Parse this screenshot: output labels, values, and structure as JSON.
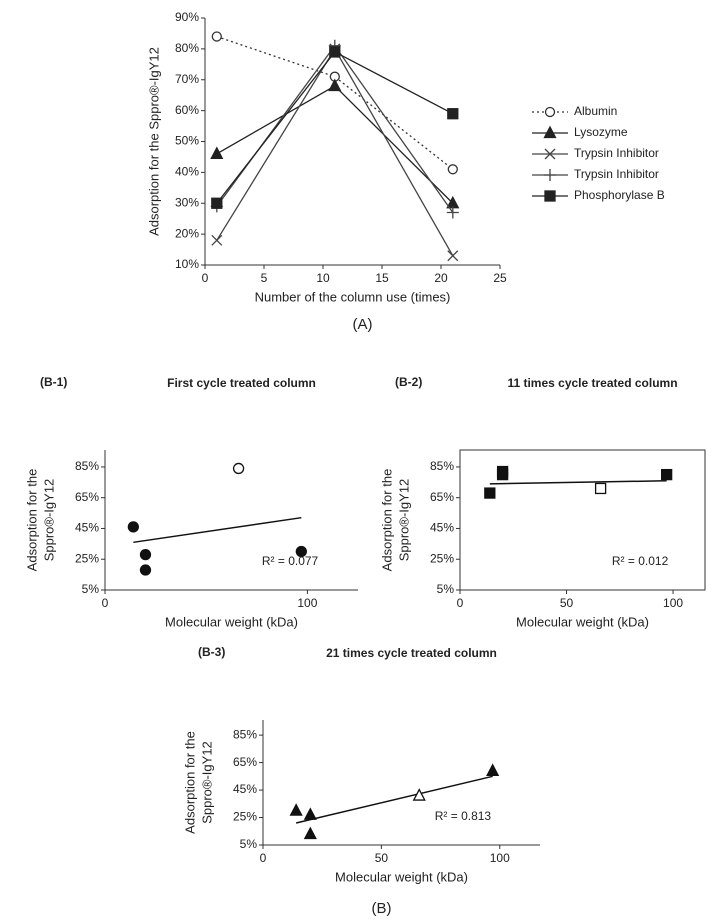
{
  "chart_data": [
    {
      "type": "line",
      "caption": "(A)",
      "xlabel": "Number of the column use (times)",
      "ylabel": [
        "Adsorption for the Sppro®-IgY12"
      ],
      "xlim": [
        0,
        25
      ],
      "xticks": [
        0,
        5,
        10,
        15,
        20,
        25
      ],
      "ylim": [
        10,
        90
      ],
      "yticks": [
        {
          "value": 10,
          "label": "10%"
        },
        {
          "value": 20,
          "label": "20%"
        },
        {
          "value": 30,
          "label": "30%"
        },
        {
          "value": 40,
          "label": "40%"
        },
        {
          "value": 50,
          "label": "50%"
        },
        {
          "value": 60,
          "label": "60%"
        },
        {
          "value": 70,
          "label": "70%"
        },
        {
          "value": 80,
          "label": "80%"
        },
        {
          "value": 90,
          "label": "90%"
        }
      ],
      "x": [
        1,
        11,
        21
      ],
      "series": [
        {
          "name": "Albumin",
          "color": "#333333",
          "marker": "circle-open",
          "dashed": true,
          "values": [
            84,
            71,
            41
          ]
        },
        {
          "name": "Lysozyme",
          "color": "#222222",
          "marker": "triangle",
          "values": [
            46,
            68,
            30
          ]
        },
        {
          "name": "Trypsin Inhibitor",
          "color": "#444444",
          "marker": "x",
          "values": [
            18,
            80,
            13
          ]
        },
        {
          "name": "Trypsin Inhibitor",
          "color": "#444444",
          "marker": "plus",
          "values": [
            29,
            81,
            27
          ]
        },
        {
          "name": "Phosphorylase B",
          "color": "#222222",
          "marker": "square",
          "values": [
            30,
            79,
            59
          ]
        }
      ]
    },
    {
      "type": "scatter",
      "panel": "(B-1)",
      "title": "First cycle treated column",
      "xlabel": "Molecular weight (kDa)",
      "ylabel": [
        "Adsorption for the",
        "Sppro®-IgY12"
      ],
      "xlim": [
        0,
        125
      ],
      "xticks": [
        0,
        100
      ],
      "ylim": [
        5,
        96
      ],
      "yticks": [
        {
          "value": 5,
          "label": "5%"
        },
        {
          "value": 25,
          "label": "25%"
        },
        {
          "value": 45,
          "label": "45%"
        },
        {
          "value": 65,
          "label": "65%"
        },
        {
          "value": 85,
          "label": "85%"
        }
      ],
      "marker": "circle",
      "color": "#111111",
      "x": [
        14,
        20,
        20,
        66,
        97
      ],
      "values": [
        46,
        28,
        18,
        84,
        30
      ],
      "hollow": [
        false,
        false,
        false,
        true,
        false
      ],
      "trendline": {
        "x": [
          14,
          97
        ],
        "values": [
          36,
          52
        ]
      },
      "annotation": "R² = 0.077"
    },
    {
      "type": "scatter",
      "panel": "(B-2)",
      "title": "11 times cycle treated column",
      "frame": true,
      "xlabel": "Molecular weight (kDa)",
      "ylabel": [
        "Adsorption for the",
        "Sppro®-IgY12"
      ],
      "xlim": [
        0,
        115
      ],
      "xticks": [
        0,
        50,
        100
      ],
      "ylim": [
        5,
        96
      ],
      "yticks": [
        {
          "value": 5,
          "label": "5%"
        },
        {
          "value": 25,
          "label": "25%"
        },
        {
          "value": 45,
          "label": "45%"
        },
        {
          "value": 65,
          "label": "65%"
        },
        {
          "value": 85,
          "label": "85%"
        }
      ],
      "marker": "square",
      "color": "#111111",
      "x": [
        14,
        20,
        20,
        66,
        97
      ],
      "values": [
        68,
        80,
        82,
        71,
        80
      ],
      "hollow": [
        false,
        false,
        false,
        true,
        false
      ],
      "trendline": {
        "x": [
          14,
          97
        ],
        "values": [
          74,
          76
        ]
      },
      "annotation": "R² = 0.012"
    },
    {
      "type": "scatter",
      "panel": "(B-3)",
      "title": "21 times cycle treated column",
      "caption": "(B)",
      "xlabel": "Molecular weight (kDa)",
      "ylabel": [
        "Adsorption for the",
        "Sppro®-IgY12"
      ],
      "xlim": [
        0,
        117
      ],
      "xticks": [
        0,
        50,
        100
      ],
      "ylim": [
        5,
        96
      ],
      "yticks": [
        {
          "value": 5,
          "label": "5%"
        },
        {
          "value": 25,
          "label": "25%"
        },
        {
          "value": 45,
          "label": "45%"
        },
        {
          "value": 65,
          "label": "65%"
        },
        {
          "value": 85,
          "label": "85%"
        }
      ],
      "marker": "triangle",
      "color": "#111111",
      "x": [
        14,
        20,
        20,
        66,
        97
      ],
      "values": [
        30,
        27,
        13,
        41,
        59
      ],
      "hollow": [
        false,
        false,
        false,
        true,
        false
      ],
      "trendline": {
        "x": [
          14,
          97
        ],
        "values": [
          21,
          55
        ]
      },
      "annotation": "R² = 0.813"
    }
  ]
}
